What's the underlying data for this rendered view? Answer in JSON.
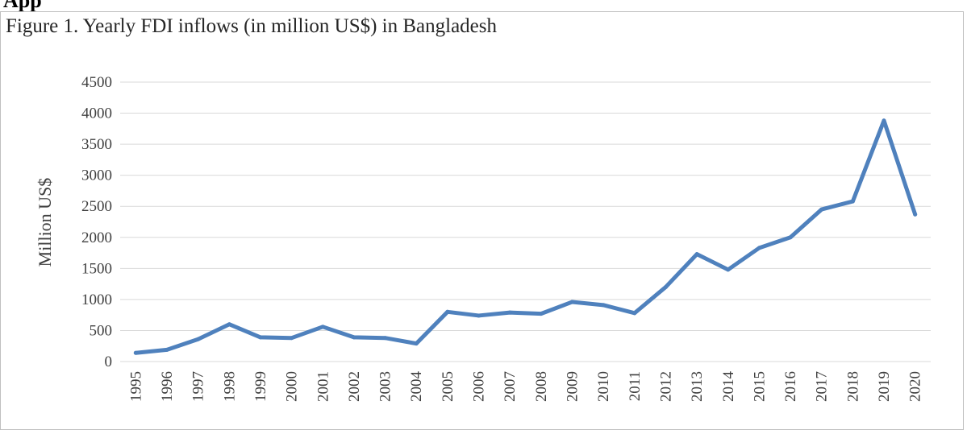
{
  "page": {
    "heading_fragment": "App"
  },
  "colors": {
    "line": "#4f81bd",
    "grid": "#d9d9d9",
    "frame": "#bfbfbf",
    "text": "#404040"
  },
  "chart_data": {
    "type": "line",
    "title": "Figure 1. Yearly FDI inflows (in million US$) in Bangladesh",
    "xlabel": "",
    "ylabel": "Million US$",
    "ylim": [
      0,
      4500
    ],
    "yticks": [
      0,
      500,
      1000,
      1500,
      2000,
      2500,
      3000,
      3500,
      4000,
      4500
    ],
    "grid": true,
    "legend": "none",
    "categories": [
      "1995",
      "1996",
      "1997",
      "1998",
      "1999",
      "2000",
      "2001",
      "2002",
      "2003",
      "2004",
      "2005",
      "2006",
      "2007",
      "2008",
      "2009",
      "2010",
      "2011",
      "2012",
      "2013",
      "2014",
      "2015",
      "2016",
      "2017",
      "2018",
      "2019",
      "2020"
    ],
    "series": [
      {
        "values": [
          140,
          190,
          360,
          600,
          390,
          380,
          560,
          390,
          380,
          290,
          800,
          740,
          790,
          770,
          960,
          910,
          780,
          1200,
          1730,
          1480,
          1830,
          2000,
          2450,
          2580,
          3880,
          2370
        ]
      }
    ]
  }
}
